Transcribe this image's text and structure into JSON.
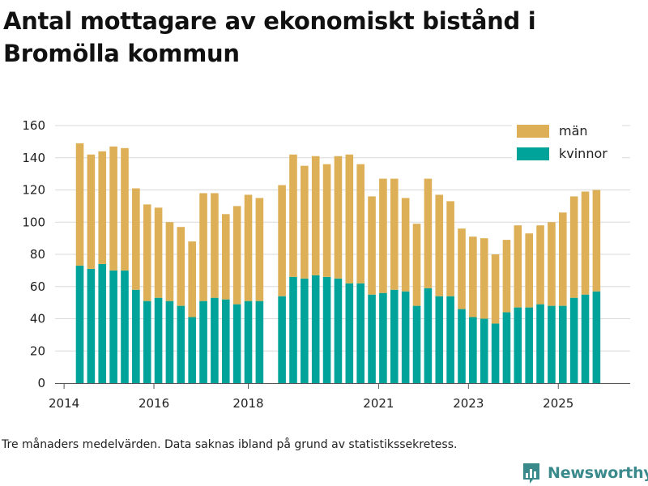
{
  "title": "Antal mottagare av ekonomiskt bistånd i Bromölla kommun",
  "caption": "Tre månaders medelvärden. Data saknas ibland på grund av statistikssekretess.",
  "brand": {
    "name": "Newsworthy"
  },
  "colors": {
    "kvinnor": "#00a39a",
    "man": "#ddb057",
    "grid": "#d9d9d9",
    "brand": "#3a8a8c"
  },
  "chart_data": {
    "type": "bar",
    "stacked": true,
    "title": "Antal mottagare av ekonomiskt bistånd i Bromölla kommun",
    "xlabel": "",
    "ylabel": "",
    "ylim": [
      0,
      160
    ],
    "yticks": [
      0,
      20,
      40,
      60,
      80,
      100,
      120,
      140,
      160
    ],
    "xlim": [
      2013.8,
      2026.6
    ],
    "xticks": [
      {
        "label": "2014",
        "value": 2014.0
      },
      {
        "label": "2016",
        "value": 2016.0
      },
      {
        "label": "2018",
        "value": 2018.1
      },
      {
        "label": "2021",
        "value": 2021.0
      },
      {
        "label": "2023",
        "value": 2023.0
      },
      {
        "label": "2025",
        "value": 2025.0
      }
    ],
    "grid": true,
    "legend_position": "top-right",
    "x": [
      2014.35,
      2014.6,
      2014.85,
      2015.1,
      2015.35,
      2015.6,
      2015.85,
      2016.1,
      2016.35,
      2016.6,
      2016.85,
      2017.1,
      2017.35,
      2017.6,
      2017.85,
      2018.1,
      2018.35,
      2018.85,
      2019.1,
      2019.35,
      2019.6,
      2019.85,
      2020.1,
      2020.35,
      2020.6,
      2020.85,
      2021.1,
      2021.35,
      2021.6,
      2021.85,
      2022.1,
      2022.35,
      2022.6,
      2022.85,
      2023.1,
      2023.35,
      2023.6,
      2023.85,
      2024.1,
      2024.35,
      2024.6,
      2024.85,
      2025.1,
      2025.35,
      2025.6,
      2025.85
    ],
    "series": [
      {
        "name": "kvinnor",
        "values": [
          73,
          71,
          74,
          70,
          70,
          58,
          51,
          53,
          51,
          48,
          41,
          51,
          53,
          52,
          49,
          51,
          51,
          54,
          66,
          65,
          67,
          66,
          65,
          62,
          62,
          55,
          56,
          58,
          57,
          48,
          59,
          54,
          54,
          46,
          41,
          40,
          37,
          44,
          47,
          47,
          49,
          48,
          48,
          53,
          55,
          57
        ]
      },
      {
        "name": "män",
        "values": [
          76,
          71,
          70,
          77,
          76,
          63,
          60,
          56,
          49,
          49,
          47,
          67,
          65,
          53,
          61,
          66,
          64,
          69,
          76,
          70,
          74,
          70,
          76,
          80,
          74,
          61,
          71,
          69,
          58,
          51,
          68,
          63,
          59,
          50,
          50,
          50,
          43,
          45,
          51,
          46,
          49,
          52,
          58,
          63,
          64,
          63
        ]
      }
    ],
    "legend": [
      {
        "name": "män",
        "label": "män"
      },
      {
        "name": "kvinnor",
        "label": "kvinnor"
      }
    ]
  }
}
